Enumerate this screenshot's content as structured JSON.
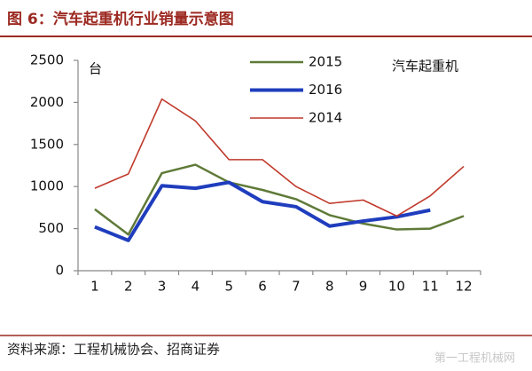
{
  "chart_data": {
    "type": "line",
    "title": "图 6：汽车起重机行业销量示意图",
    "y_label": "台",
    "annotation": "汽车起重机",
    "source": "资料来源：工程机械协会、招商证券",
    "watermark": "第一工程机械网",
    "categories": [
      "1",
      "2",
      "3",
      "4",
      "5",
      "6",
      "7",
      "8",
      "9",
      "10",
      "11",
      "12"
    ],
    "ylim": [
      0,
      2500
    ],
    "yticks": [
      0,
      500,
      1000,
      1500,
      2000,
      2500
    ],
    "legend": "top-center",
    "series": [
      {
        "name": "2015",
        "color": "#5f7a38",
        "width": 2.5,
        "values": [
          730,
          430,
          1160,
          1260,
          1050,
          960,
          850,
          660,
          560,
          490,
          500,
          650
        ]
      },
      {
        "name": "2016",
        "color": "#1f3dbd",
        "width": 4,
        "values": [
          520,
          360,
          1010,
          980,
          1050,
          820,
          760,
          530,
          590,
          640,
          720,
          null
        ]
      },
      {
        "name": "2014",
        "color": "#c0392b",
        "width": 1.6,
        "values": [
          980,
          1150,
          2040,
          1780,
          1320,
          1320,
          1000,
          800,
          840,
          650,
          890,
          1240
        ]
      }
    ]
  }
}
